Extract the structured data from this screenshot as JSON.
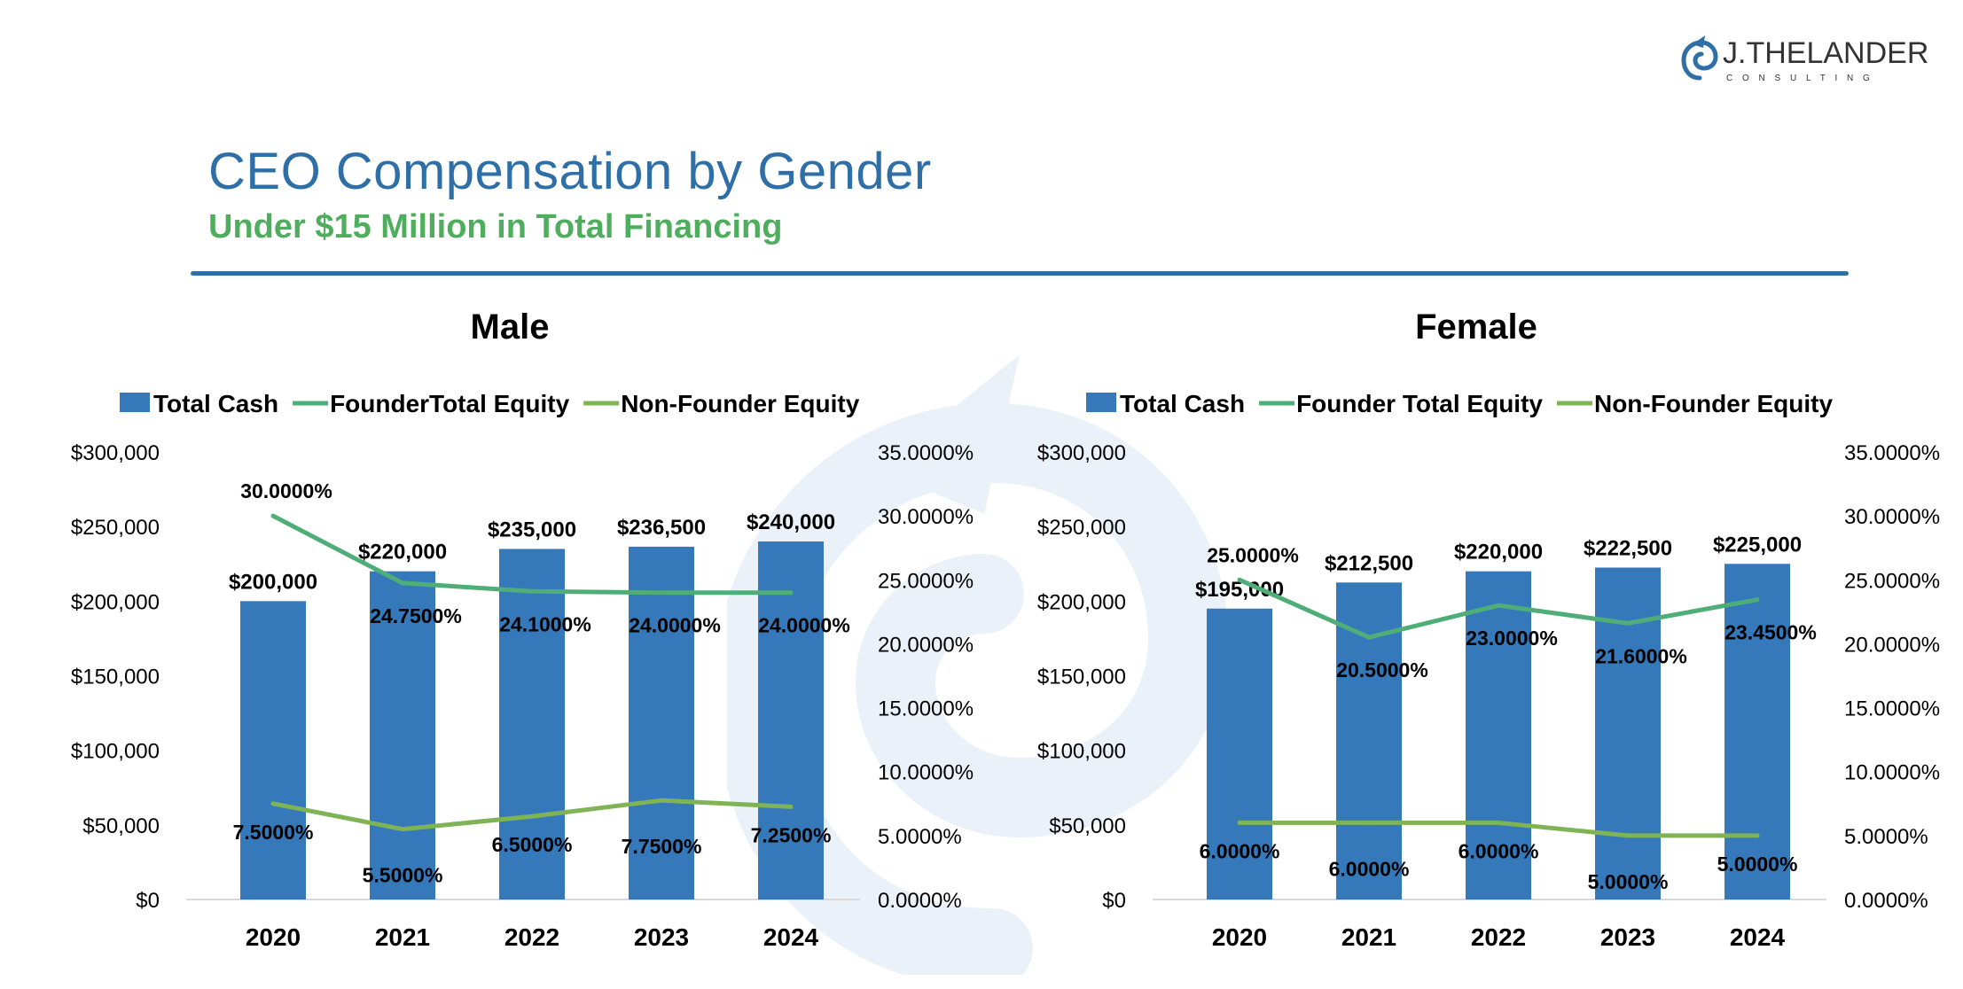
{
  "brand": {
    "name": "J.THELANDER",
    "tagline": "C O N S U L T I N G",
    "color": "#2e6fa7"
  },
  "header": {
    "title": "CEO Compensation by Gender",
    "subtitle": "Under $15 Million in Total Financing",
    "title_color": "#2e6fa7",
    "subtitle_color": "#4fae5d"
  },
  "colors": {
    "bar": "#3579ba",
    "founder_line": "#4fae78",
    "non_founder_line": "#7fb356"
  },
  "chart_data": [
    {
      "type": "bar",
      "title": "Male",
      "categories": [
        "2020",
        "2021",
        "2022",
        "2023",
        "2024"
      ],
      "y_left": {
        "ylim": [
          0,
          300000
        ],
        "ticks": [
          "$0",
          "$50,000",
          "$100,000",
          "$150,000",
          "$200,000",
          "$250,000",
          "$300,000"
        ]
      },
      "y_right": {
        "ylim": [
          0,
          35
        ],
        "ticks": [
          "0.0000%",
          "5.0000%",
          "10.0000%",
          "15.0000%",
          "20.0000%",
          "25.0000%",
          "30.0000%",
          "35.0000%"
        ]
      },
      "legend_position": "top",
      "series": [
        {
          "name": "Total Cash",
          "type": "bar",
          "axis": "left",
          "values": [
            200000,
            220000,
            235000,
            236500,
            240000
          ],
          "labels": [
            "$200,000",
            "$220,000",
            "$235,000",
            "$236,500",
            "$240,000"
          ]
        },
        {
          "name": "FounderTotal Equity",
          "type": "line",
          "axis": "right",
          "values": [
            30.0,
            24.75,
            24.1,
            24.0,
            24.0
          ],
          "labels": [
            "30.0000%",
            "24.7500%",
            "24.1000%",
            "24.0000%",
            "24.0000%"
          ]
        },
        {
          "name": "Non-Founder Equity",
          "type": "line",
          "axis": "right",
          "values": [
            7.5,
            5.5,
            6.5,
            7.75,
            7.25
          ],
          "labels": [
            "7.5000%",
            "5.5000%",
            "6.5000%",
            "7.7500%",
            "7.2500%"
          ]
        }
      ]
    },
    {
      "type": "bar",
      "title": "Female",
      "categories": [
        "2020",
        "2021",
        "2022",
        "2023",
        "2024"
      ],
      "y_left": {
        "ylim": [
          0,
          300000
        ],
        "ticks": [
          "$0",
          "$50,000",
          "$100,000",
          "$150,000",
          "$200,000",
          "$250,000",
          "$300,000"
        ]
      },
      "y_right": {
        "ylim": [
          0,
          35
        ],
        "ticks": [
          "0.0000%",
          "5.0000%",
          "10.0000%",
          "15.0000%",
          "20.0000%",
          "25.0000%",
          "30.0000%",
          "35.0000%"
        ]
      },
      "legend_position": "top",
      "series": [
        {
          "name": "Total Cash",
          "type": "bar",
          "axis": "left",
          "values": [
            195000,
            212500,
            220000,
            222500,
            225000
          ],
          "labels": [
            "$195,000",
            "$212,500",
            "$220,000",
            "$222,500",
            "$225,000"
          ]
        },
        {
          "name": "Founder Total Equity",
          "type": "line",
          "axis": "right",
          "values": [
            25.0,
            20.5,
            23.0,
            21.6,
            23.45
          ],
          "labels": [
            "25.0000%",
            "20.5000%",
            "23.0000%",
            "21.6000%",
            "23.4500%"
          ]
        },
        {
          "name": "Non-Founder Equity",
          "type": "line",
          "axis": "right",
          "values": [
            6.0,
            6.0,
            6.0,
            5.0,
            5.0
          ],
          "labels": [
            "6.0000%",
            "6.0000%",
            "6.0000%",
            "5.0000%",
            "5.0000%"
          ]
        }
      ]
    }
  ]
}
